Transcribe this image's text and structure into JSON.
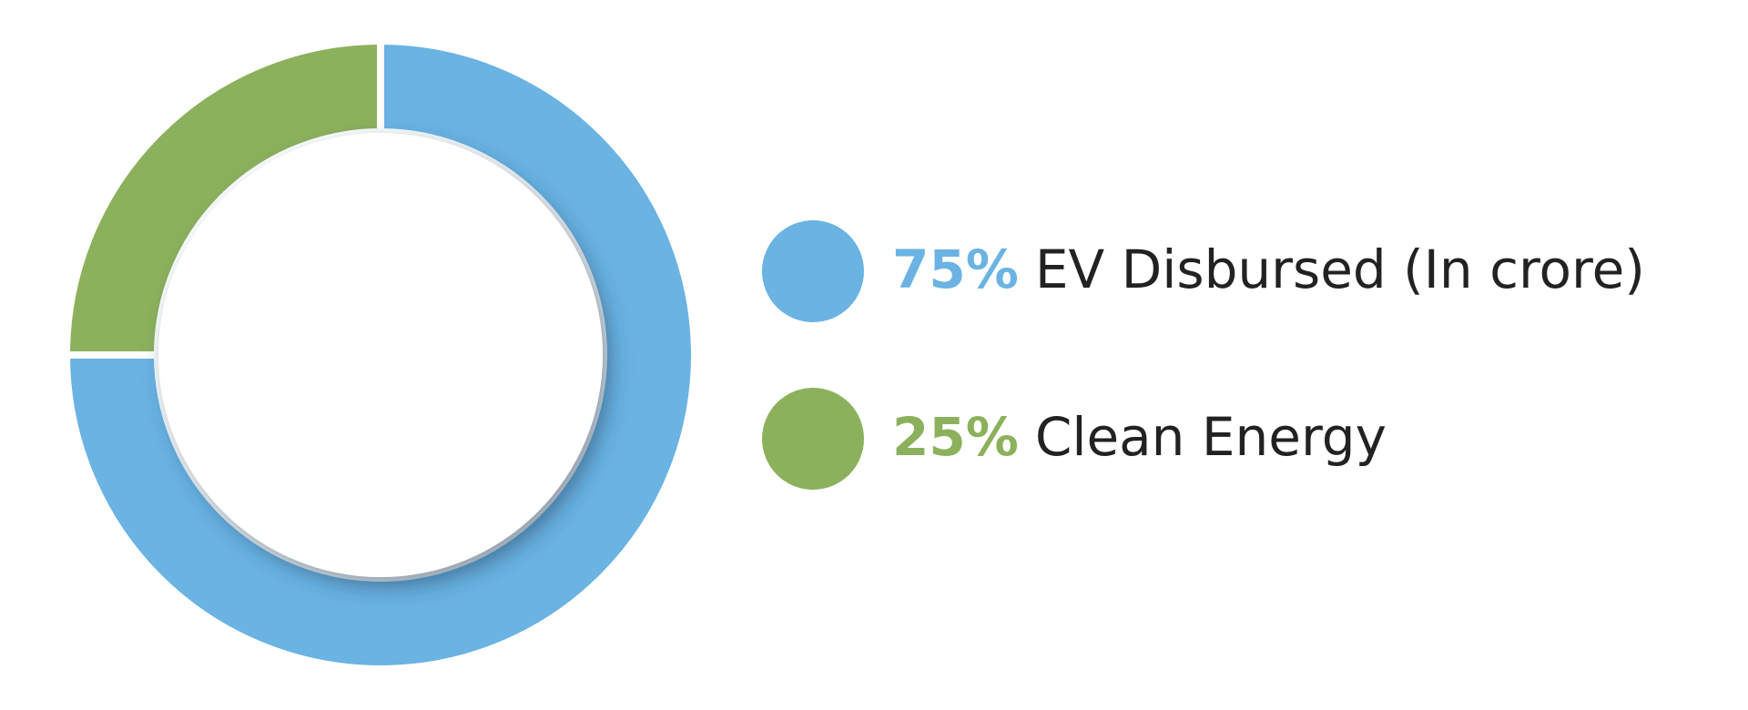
{
  "chart_data": {
    "type": "pie",
    "donut": true,
    "categories": [
      "EV Disbursed (In crore)",
      "Clean Energy"
    ],
    "values": [
      75,
      25
    ],
    "value_labels": [
      "75%",
      "25%"
    ],
    "colors": [
      "#6ab3e3",
      "#8cb15c"
    ]
  }
}
